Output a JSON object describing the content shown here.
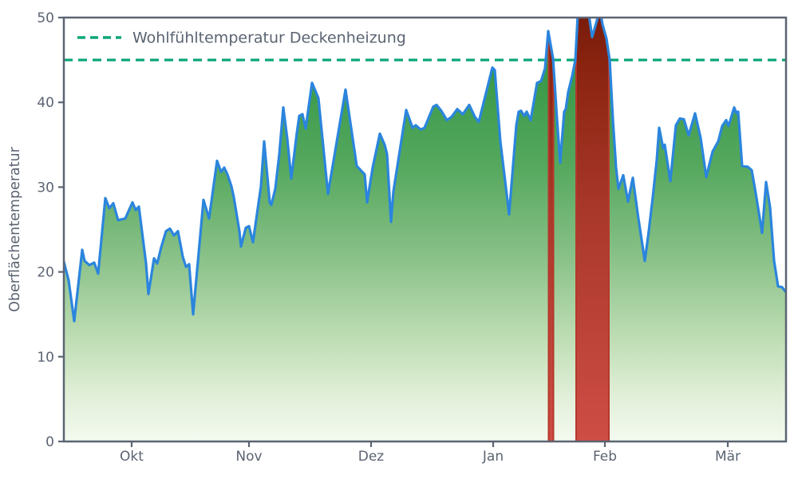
{
  "chart_data": {
    "type": "area",
    "title": "",
    "xlabel": "",
    "ylabel": "Oberflächentemperatur",
    "ylim": [
      0,
      50
    ],
    "xlim": [
      0,
      181
    ],
    "grid": false,
    "y_ticks": [
      0,
      10,
      20,
      30,
      40,
      50
    ],
    "x_ticks": [
      {
        "label": "Okt",
        "x": 17.0
      },
      {
        "label": "Nov",
        "x": 46.4
      },
      {
        "label": "Dez",
        "x": 77.0
      },
      {
        "label": "Jan",
        "x": 107.6
      },
      {
        "label": "Feb",
        "x": 135.6
      },
      {
        "label": "Mär",
        "x": 166.4
      }
    ],
    "threshold": {
      "value": 45,
      "label": "Wohlfühltemperatur Deckenheizung",
      "color": "#0ca57a"
    },
    "legend": {
      "position": "upper-left",
      "entries": [
        "Wohlfühltemperatur Deckenheizung"
      ]
    },
    "overheat_regions_x": [
      [
        121.3,
        122.9
      ],
      [
        128.2,
        136.8
      ]
    ],
    "series": [
      {
        "name": "Oberflächentemperatur",
        "x": [
          0,
          1.2,
          2.6,
          4.6,
          5.2,
          6.4,
          7.6,
          8.6,
          10.4,
          11.4,
          12.4,
          13.6,
          15.4,
          17.2,
          18,
          18.8,
          20.6,
          21.2,
          22.6,
          23.4,
          24.4,
          25.6,
          26.6,
          27.6,
          28.6,
          29.8,
          30.6,
          31.4,
          32.4,
          35,
          36.4,
          38.4,
          39.4,
          40.2,
          41,
          42,
          42.6,
          44,
          44.4,
          45.6,
          46.4,
          47.4,
          49.4,
          50.2,
          51.6,
          52,
          53,
          54,
          55,
          56,
          57,
          58.4,
          59,
          59.8,
          60.6,
          62.2,
          63.8,
          66.2,
          70.6,
          73.4,
          74.4,
          75.4,
          76,
          77.4,
          79.2,
          80.4,
          81,
          82,
          82.6,
          85.8,
          87.4,
          88.2,
          89.4,
          90.4,
          92.6,
          93.4,
          94.6,
          96,
          97.2,
          98.6,
          100,
          101.6,
          103,
          104,
          107.4,
          108,
          109.4,
          111.6,
          113.4,
          114,
          114.6,
          115.4,
          116,
          117,
          118.6,
          119.6,
          120.6,
          121.4,
          122.6,
          123.6,
          124.4,
          125.4,
          125.8,
          126.4,
          127.4,
          128.2,
          128.8,
          131.6,
          132.4,
          134,
          134.6,
          135,
          136,
          136.8,
          137.6,
          138.4,
          139,
          140.2,
          141.4,
          142.6,
          144,
          145,
          145.6,
          146.6,
          147.6,
          148.6,
          149.2,
          150.2,
          150.6,
          152,
          153.4,
          154.4,
          155.4,
          156.6,
          158.2,
          159.6,
          161,
          162.6,
          164,
          165,
          166,
          166.6,
          168,
          168.6,
          169,
          170,
          171.4,
          172.4,
          173.4,
          175,
          176,
          177,
          178,
          179,
          180,
          181
        ],
        "values": [
          21.2,
          19,
          14.2,
          22.6,
          21.3,
          20.8,
          21.1,
          19.8,
          28.7,
          27.5,
          28.1,
          26.1,
          26.3,
          28.2,
          27.3,
          27.7,
          21,
          17.4,
          21.6,
          21,
          22.9,
          24.8,
          25.1,
          24.3,
          24.8,
          21.8,
          20.6,
          20.9,
          15,
          28.5,
          26.3,
          33.1,
          31.8,
          32.3,
          31.5,
          30.1,
          28.8,
          24.8,
          23,
          25.2,
          25.4,
          23.5,
          30.1,
          35.4,
          28.2,
          27.9,
          29.8,
          33.9,
          39.4,
          35.7,
          31,
          36.4,
          38.4,
          38.6,
          36.9,
          42.3,
          40.5,
          29.2,
          41.5,
          32.5,
          32,
          31.5,
          28.2,
          32.3,
          36.3,
          35,
          33.9,
          25.9,
          29.5,
          39.1,
          37,
          37.3,
          36.8,
          37,
          39.5,
          39.7,
          39,
          37.9,
          38.3,
          39.2,
          38.6,
          39.7,
          38.3,
          37.7,
          44.1,
          43.8,
          35.4,
          26.8,
          37.3,
          38.9,
          39,
          38.4,
          38.9,
          37.9,
          42.3,
          42.5,
          44,
          48.4,
          45.2,
          38,
          32.9,
          38.9,
          39.2,
          41.2,
          43.1,
          45,
          50.3,
          50.3,
          47.7,
          50.3,
          50.3,
          49.2,
          47.5,
          45,
          38,
          32.3,
          29.8,
          31.4,
          28.3,
          31.1,
          26.3,
          23.2,
          21.3,
          24.8,
          28.8,
          33.2,
          37,
          34.6,
          35,
          30.7,
          37.3,
          38.1,
          38,
          36.1,
          38.7,
          35.8,
          31.2,
          34.2,
          35.4,
          37.2,
          37.9,
          37.2,
          39.4,
          38.7,
          38.9,
          32.5,
          32.4,
          32,
          29.3,
          24.6,
          30.6,
          27.6,
          21.3,
          18.3,
          18.2,
          17.6
        ]
      }
    ],
    "colors": {
      "line": "#2b85dd",
      "threshold": "#0ca57a",
      "axis": "#5b6472",
      "area_top": "#2e8b3d",
      "area_mid": "#55a85e",
      "area_low": "#bcdcb2",
      "area_bottom": "#f4faf0",
      "overheat_top": "#7a1c0c",
      "overheat_mid": "#a9372a",
      "overheat_bottom": "#ce4d45",
      "overheat_edge": "#b5382b"
    }
  }
}
